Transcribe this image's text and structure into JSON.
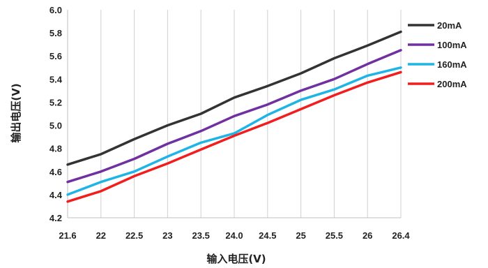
{
  "chart_data": {
    "type": "line",
    "xlabel": "输入电压(V)",
    "ylabel": "输出电压(V)",
    "categories": [
      "21.6",
      "22",
      "22.5",
      "23",
      "23.5",
      "24.0",
      "24.5",
      "25",
      "25.5",
      "26",
      "26.4"
    ],
    "ylim": [
      4.2,
      6.0
    ],
    "yticks": [
      "4.2",
      "4.4",
      "4.6",
      "4.8",
      "5.0",
      "5.2",
      "5.4",
      "5.6",
      "5.8",
      "6.0"
    ],
    "grid": "vertical",
    "legend_position": "right",
    "series": [
      {
        "name": "20mA",
        "color": "#333333",
        "values": [
          4.66,
          4.75,
          4.88,
          5.0,
          5.1,
          5.24,
          5.34,
          5.45,
          5.58,
          5.69,
          5.81
        ]
      },
      {
        "name": "100mA",
        "color": "#7030A0",
        "values": [
          4.51,
          4.6,
          4.71,
          4.84,
          4.95,
          5.08,
          5.18,
          5.3,
          5.4,
          5.53,
          5.65
        ]
      },
      {
        "name": "160mA",
        "color": "#1EB4E6",
        "values": [
          4.4,
          4.51,
          4.6,
          4.73,
          4.85,
          4.93,
          5.09,
          5.22,
          5.31,
          5.43,
          5.5
        ]
      },
      {
        "name": "200mA",
        "color": "#F01E1E",
        "values": [
          4.34,
          4.43,
          4.56,
          4.67,
          4.79,
          4.91,
          5.02,
          5.14,
          5.26,
          5.37,
          5.46
        ]
      }
    ]
  }
}
